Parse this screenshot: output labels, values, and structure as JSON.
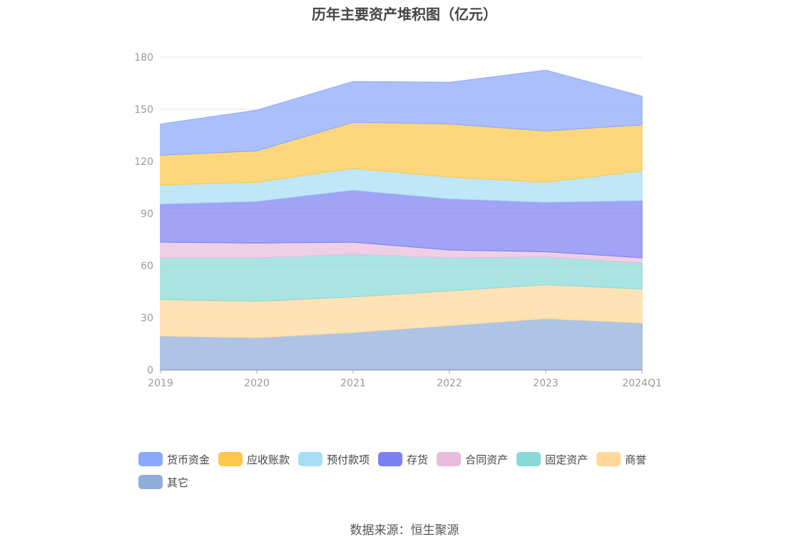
{
  "chart_data": {
    "type": "area",
    "stacked": true,
    "title": "历年主要资产堆积图（亿元）",
    "categories": [
      "2019",
      "2020",
      "2021",
      "2022",
      "2023",
      "2024Q1"
    ],
    "ylim": [
      0,
      180
    ],
    "yticks": [
      0,
      30,
      60,
      90,
      120,
      150,
      180
    ],
    "grid": true,
    "legend_position": "bottom",
    "series": [
      {
        "name": "其它",
        "color": "#8FADDA",
        "values": [
          19.5,
          18.5,
          21.5,
          25.5,
          29.5,
          27.0
        ]
      },
      {
        "name": "商誉",
        "color": "#FFD89A",
        "values": [
          21.0,
          21.0,
          20.5,
          20.0,
          19.5,
          19.5
        ]
      },
      {
        "name": "固定资产",
        "color": "#88D9D7",
        "values": [
          24.0,
          25.0,
          24.5,
          19.0,
          16.0,
          15.0
        ]
      },
      {
        "name": "合同资产",
        "color": "#E8BCDC",
        "values": [
          9.0,
          8.5,
          7.0,
          4.5,
          3.0,
          3.0
        ]
      },
      {
        "name": "存货",
        "color": "#7B7FF2",
        "values": [
          22.0,
          24.0,
          30.0,
          29.5,
          28.5,
          33.0
        ]
      },
      {
        "name": "预付款项",
        "color": "#A8DEF5",
        "values": [
          11.0,
          11.0,
          12.5,
          12.5,
          11.5,
          17.0
        ]
      },
      {
        "name": "应收账款",
        "color": "#FEC749",
        "values": [
          17.0,
          18.0,
          26.5,
          30.5,
          29.5,
          26.5
        ]
      },
      {
        "name": "货币资金",
        "color": "#8AA8FA",
        "values": [
          18.0,
          23.5,
          23.5,
          24.0,
          35.0,
          16.5
        ]
      }
    ],
    "legend_order": [
      "货币资金",
      "应收账款",
      "预付款项",
      "存货",
      "合同资产",
      "固定资产",
      "商誉",
      "其它"
    ]
  },
  "source": "数据来源：恒生聚源"
}
